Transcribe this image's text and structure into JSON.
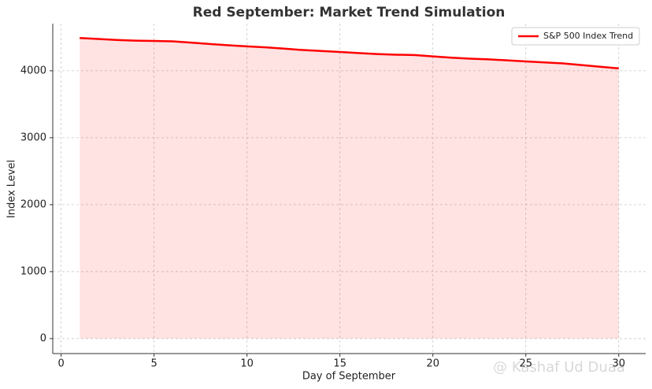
{
  "chart_data": {
    "type": "line",
    "title": "Red September: Market Trend Simulation",
    "xlabel": "Day of September",
    "ylabel": "Index Level",
    "x": [
      1,
      2,
      3,
      4,
      5,
      6,
      7,
      8,
      9,
      10,
      11,
      12,
      13,
      14,
      15,
      16,
      17,
      18,
      19,
      20,
      21,
      22,
      23,
      24,
      25,
      26,
      27,
      28,
      29,
      30
    ],
    "series": [
      {
        "name": "S&P 500 Index Trend",
        "color": "#ff0000",
        "fill": true,
        "values": [
          4490,
          4475,
          4460,
          4450,
          4445,
          4440,
          4420,
          4400,
          4380,
          4365,
          4350,
          4330,
          4310,
          4295,
          4280,
          4265,
          4250,
          4240,
          4235,
          4215,
          4195,
          4180,
          4170,
          4155,
          4140,
          4125,
          4110,
          4085,
          4060,
          4035
        ]
      }
    ],
    "xlim": [
      -0.45,
      31.45
    ],
    "ylim": [
      -224,
      4704
    ],
    "xticks": [
      0,
      5,
      10,
      15,
      20,
      25,
      30
    ],
    "yticks": [
      0,
      1000,
      2000,
      3000,
      4000
    ],
    "grid": true,
    "legend": "upper right"
  },
  "watermark": "@ Kashaf Ud Duaa"
}
